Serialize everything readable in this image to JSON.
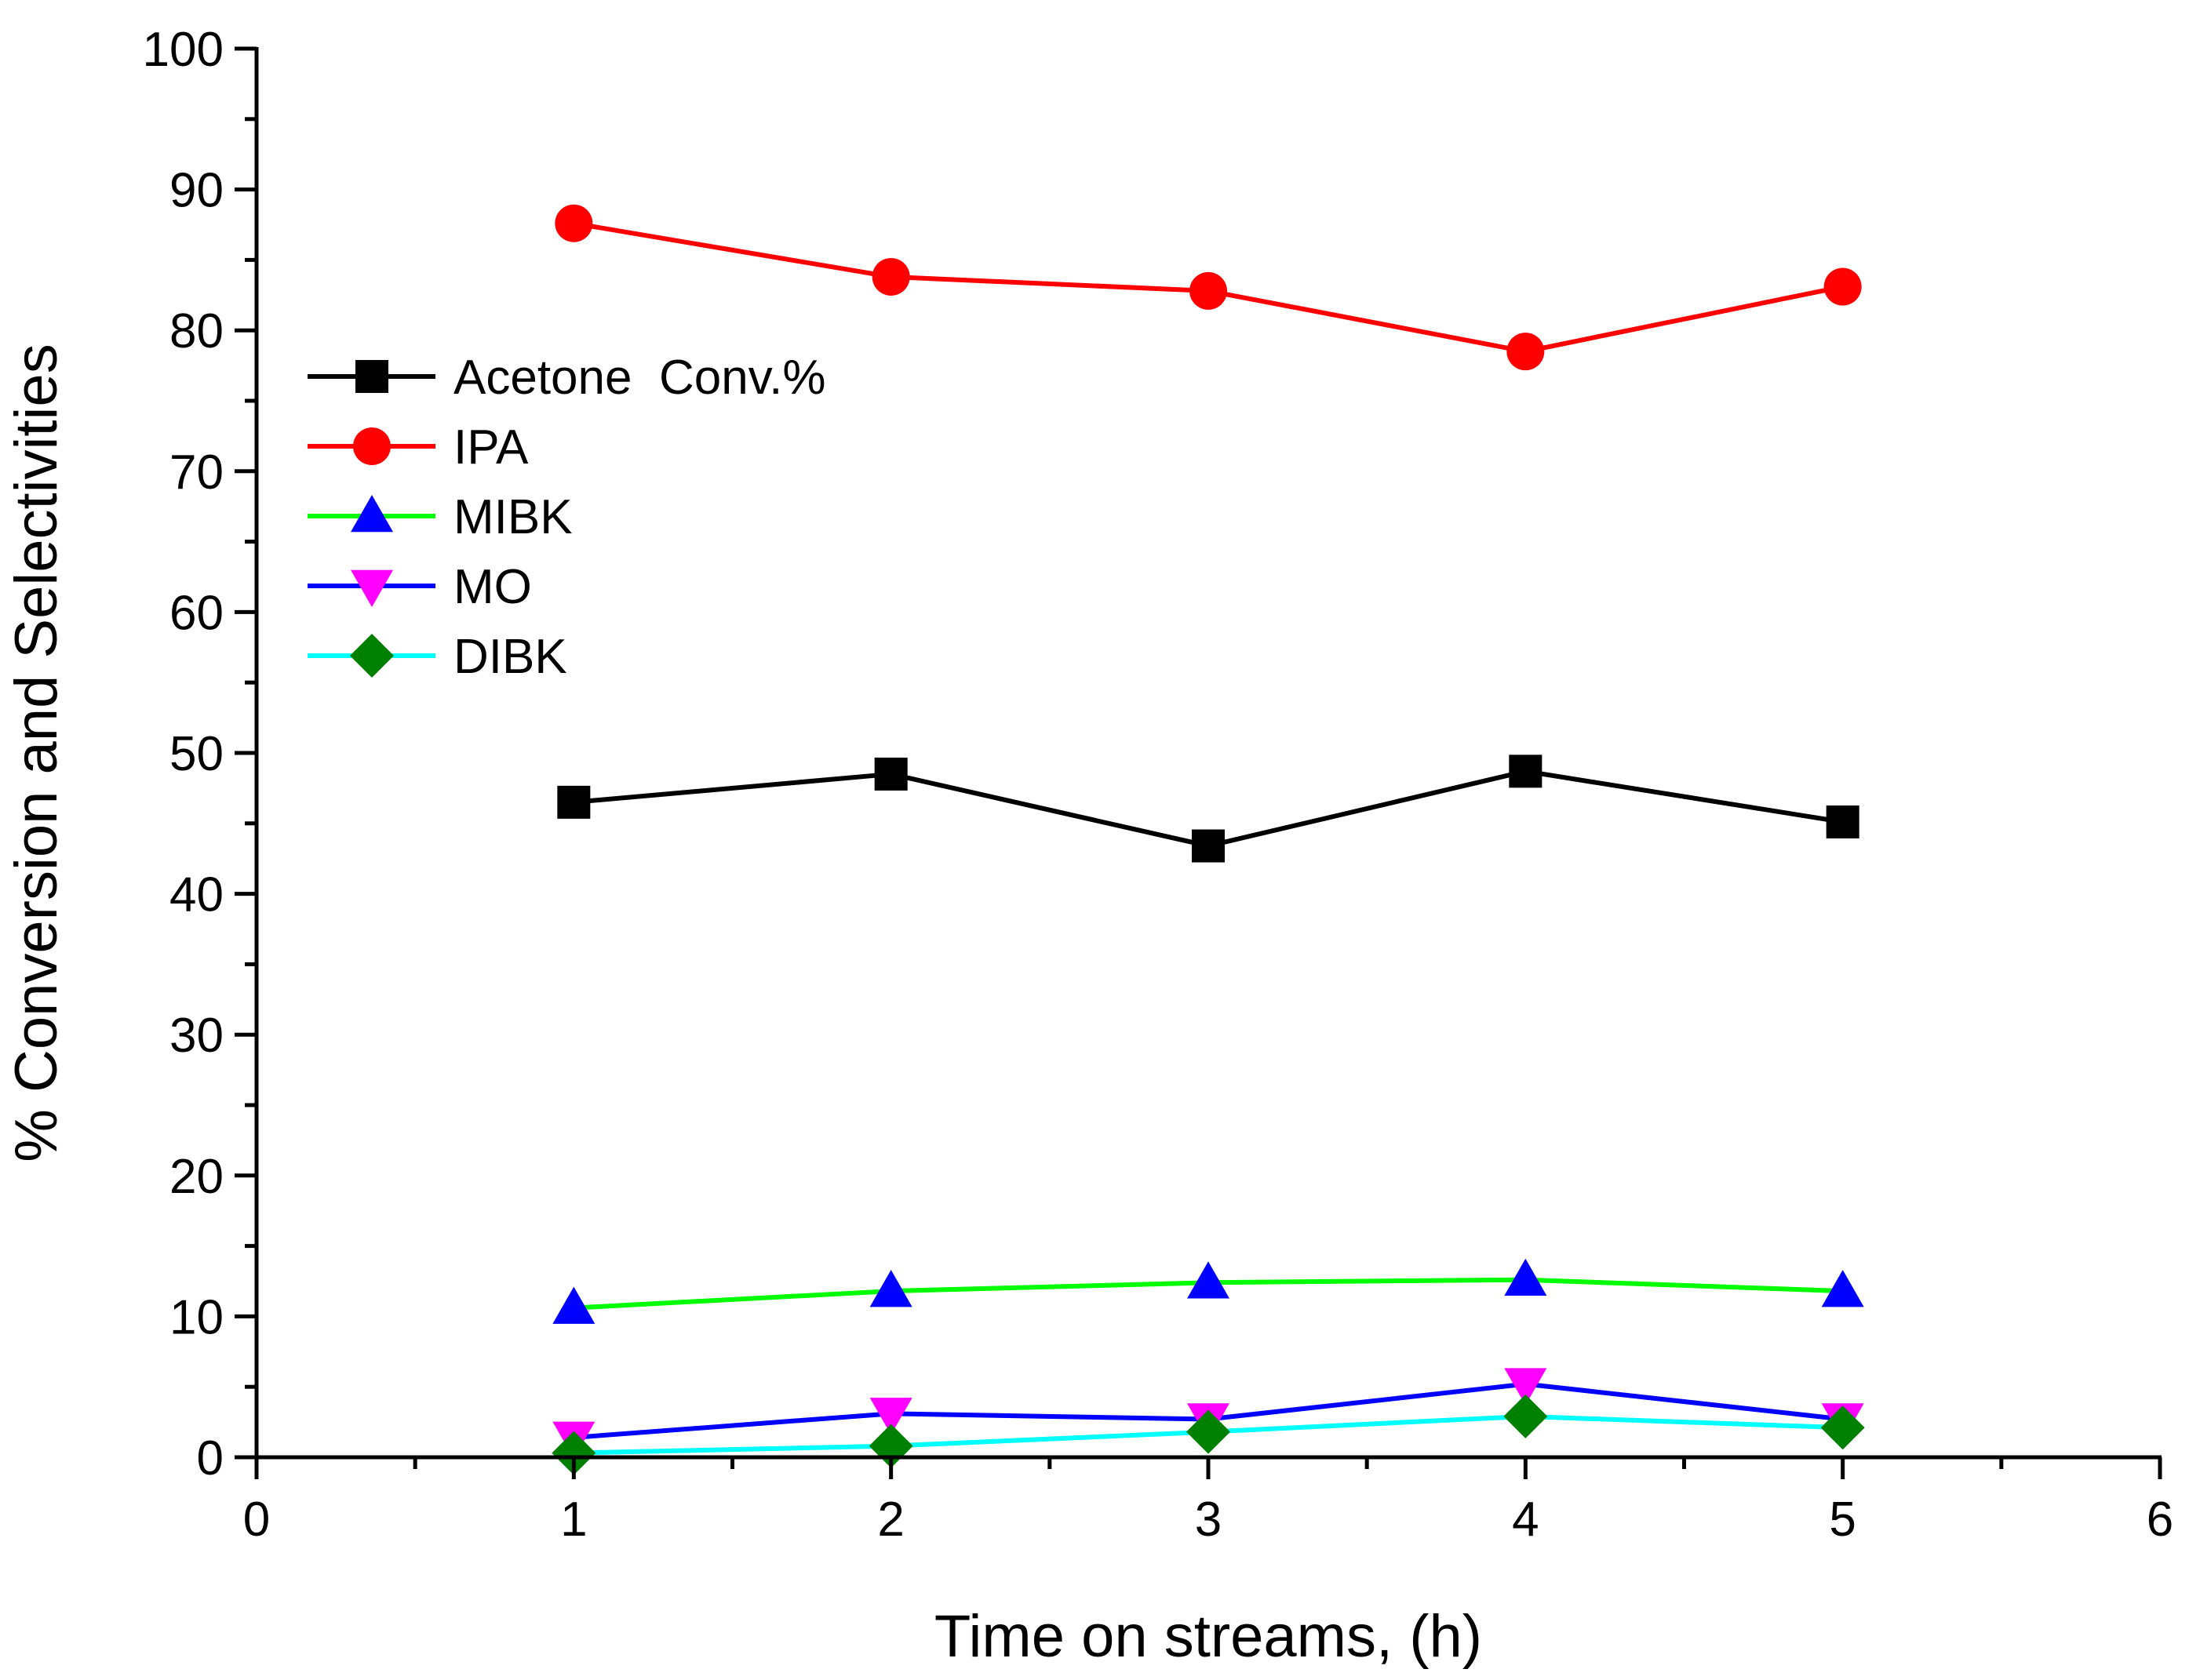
{
  "chart_data": {
    "type": "line",
    "title": "",
    "xlabel": "Time on streams, (h)",
    "ylabel": "% Conversion and Selectivities",
    "xlim": [
      0,
      6
    ],
    "ylim": [
      0,
      100
    ],
    "x_ticks": [
      0,
      1,
      2,
      3,
      4,
      5,
      6
    ],
    "y_ticks": [
      0,
      10,
      20,
      30,
      40,
      50,
      60,
      70,
      80,
      90,
      100
    ],
    "x_tick_labels": [
      "0",
      "1",
      "2",
      "3",
      "4",
      "5",
      "6"
    ],
    "y_tick_labels": [
      "0",
      "10",
      "20",
      "30",
      "40",
      "50",
      "60",
      "70",
      "80",
      "90",
      "100"
    ],
    "grid": false,
    "legend_position": "upper-left",
    "x": [
      1,
      2,
      3,
      4,
      5
    ],
    "series": [
      {
        "name": "Acetone  Conv.%",
        "values": [
          46.5,
          48.5,
          43.4,
          48.7,
          45.1
        ],
        "line_color": "#000000",
        "marker_color": "#000000",
        "marker": "square"
      },
      {
        "name": "IPA",
        "values": [
          87.6,
          83.8,
          82.8,
          78.5,
          83.1
        ],
        "line_color": "#ff0000",
        "marker_color": "#ff0000",
        "marker": "circle"
      },
      {
        "name": "MIBK",
        "values": [
          10.6,
          11.8,
          12.4,
          12.6,
          11.8
        ],
        "line_color": "#00ff00",
        "marker_color": "#0000ff",
        "marker": "triangle-up"
      },
      {
        "name": "MO",
        "values": [
          1.4,
          3.1,
          2.7,
          5.2,
          2.7
        ],
        "line_color": "#0000ff",
        "marker_color": "#ff00ff",
        "marker": "triangle-down"
      },
      {
        "name": "DIBK",
        "values": [
          0.3,
          0.8,
          1.8,
          2.9,
          2.1
        ],
        "line_color": "#00ffff",
        "marker_color": "#008000",
        "marker": "diamond"
      }
    ]
  }
}
